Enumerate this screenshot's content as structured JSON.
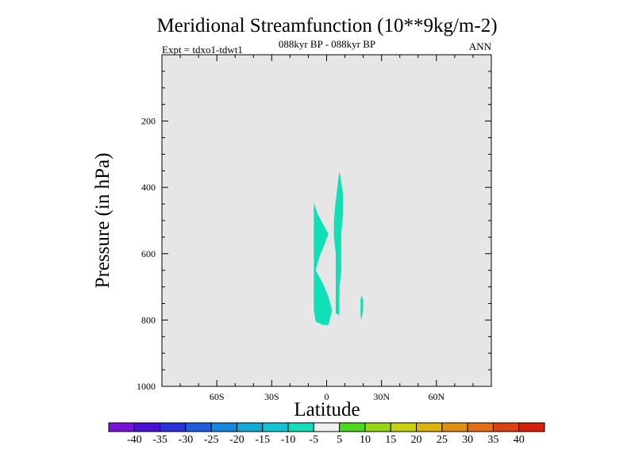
{
  "chart_data": {
    "type": "contour",
    "title": "Meridional Streamfunction (10**9kg/m-2)",
    "subtitle": "088kyr BP - 088kyr BP",
    "left_label": "Expt = tdxo1-tdwt1",
    "right_label": "ANN",
    "xlabel": "Latitude",
    "ylabel": "Pressure (in hPa)",
    "xlim": [
      -90,
      90
    ],
    "ylim": [
      1000,
      0
    ],
    "y_axis_reversed": true,
    "x_ticks": [
      {
        "value": -60,
        "label": "60S"
      },
      {
        "value": -30,
        "label": "30S"
      },
      {
        "value": 0,
        "label": "0"
      },
      {
        "value": 30,
        "label": "30N"
      },
      {
        "value": 60,
        "label": "60N"
      }
    ],
    "y_ticks": [
      {
        "value": 200,
        "label": "200"
      },
      {
        "value": 400,
        "label": "400"
      },
      {
        "value": 600,
        "label": "600"
      },
      {
        "value": 800,
        "label": "800"
      },
      {
        "value": 1000,
        "label": "1000"
      }
    ],
    "background_color": "#e6e6e6",
    "background_level": "-5 to 5",
    "contour_levels": [
      -40,
      -35,
      -30,
      -25,
      -20,
      -15,
      -10,
      -5,
      5,
      10,
      15,
      20,
      25,
      30,
      35,
      40
    ],
    "colorbar_colors": [
      "#7b10d8",
      "#4b12d6",
      "#2832dc",
      "#1c5ee0",
      "#1488e0",
      "#0eaad8",
      "#0cc6d6",
      "#10e0b8",
      "#f0f0f0",
      "#4cd81e",
      "#96d80e",
      "#c8d20a",
      "#e0b20a",
      "#e08e10",
      "#e06e14",
      "#dc4010",
      "#d82008"
    ],
    "filled_regions": [
      {
        "level_range": "-10 to -5",
        "color": "#10e0b8",
        "points": [
          [
            -7,
            445
          ],
          [
            -5,
            480
          ],
          [
            -2,
            510
          ],
          [
            1,
            540
          ],
          [
            -1,
            570
          ],
          [
            -4,
            610
          ],
          [
            -6,
            650
          ],
          [
            -2,
            690
          ],
          [
            1,
            730
          ],
          [
            3,
            770
          ],
          [
            1,
            815
          ],
          [
            -2,
            815
          ],
          [
            -6,
            805
          ],
          [
            -7,
            770
          ],
          [
            -7,
            700
          ],
          [
            -7,
            650
          ],
          [
            -7,
            600
          ],
          [
            -7,
            550
          ],
          [
            -7,
            490
          ]
        ]
      },
      {
        "level_range": "-10 to -5",
        "color": "#10e0b8",
        "points": [
          [
            7,
            350
          ],
          [
            9,
            420
          ],
          [
            9,
            480
          ],
          [
            8,
            540
          ],
          [
            8,
            600
          ],
          [
            8,
            650
          ],
          [
            7,
            700
          ],
          [
            7,
            740
          ],
          [
            7,
            785
          ],
          [
            5,
            780
          ],
          [
            5,
            740
          ],
          [
            5,
            700
          ],
          [
            5,
            650
          ],
          [
            5,
            600
          ],
          [
            4,
            550
          ],
          [
            4,
            500
          ],
          [
            5,
            440
          ]
        ]
      },
      {
        "level_range": "-10 to -5",
        "color": "#10e0b8",
        "points": [
          [
            19,
            725
          ],
          [
            20,
            740
          ],
          [
            20,
            760
          ],
          [
            19.5,
            785
          ],
          [
            19,
            800
          ],
          [
            18.5,
            785
          ],
          [
            18.5,
            760
          ],
          [
            18.5,
            740
          ]
        ]
      }
    ]
  }
}
